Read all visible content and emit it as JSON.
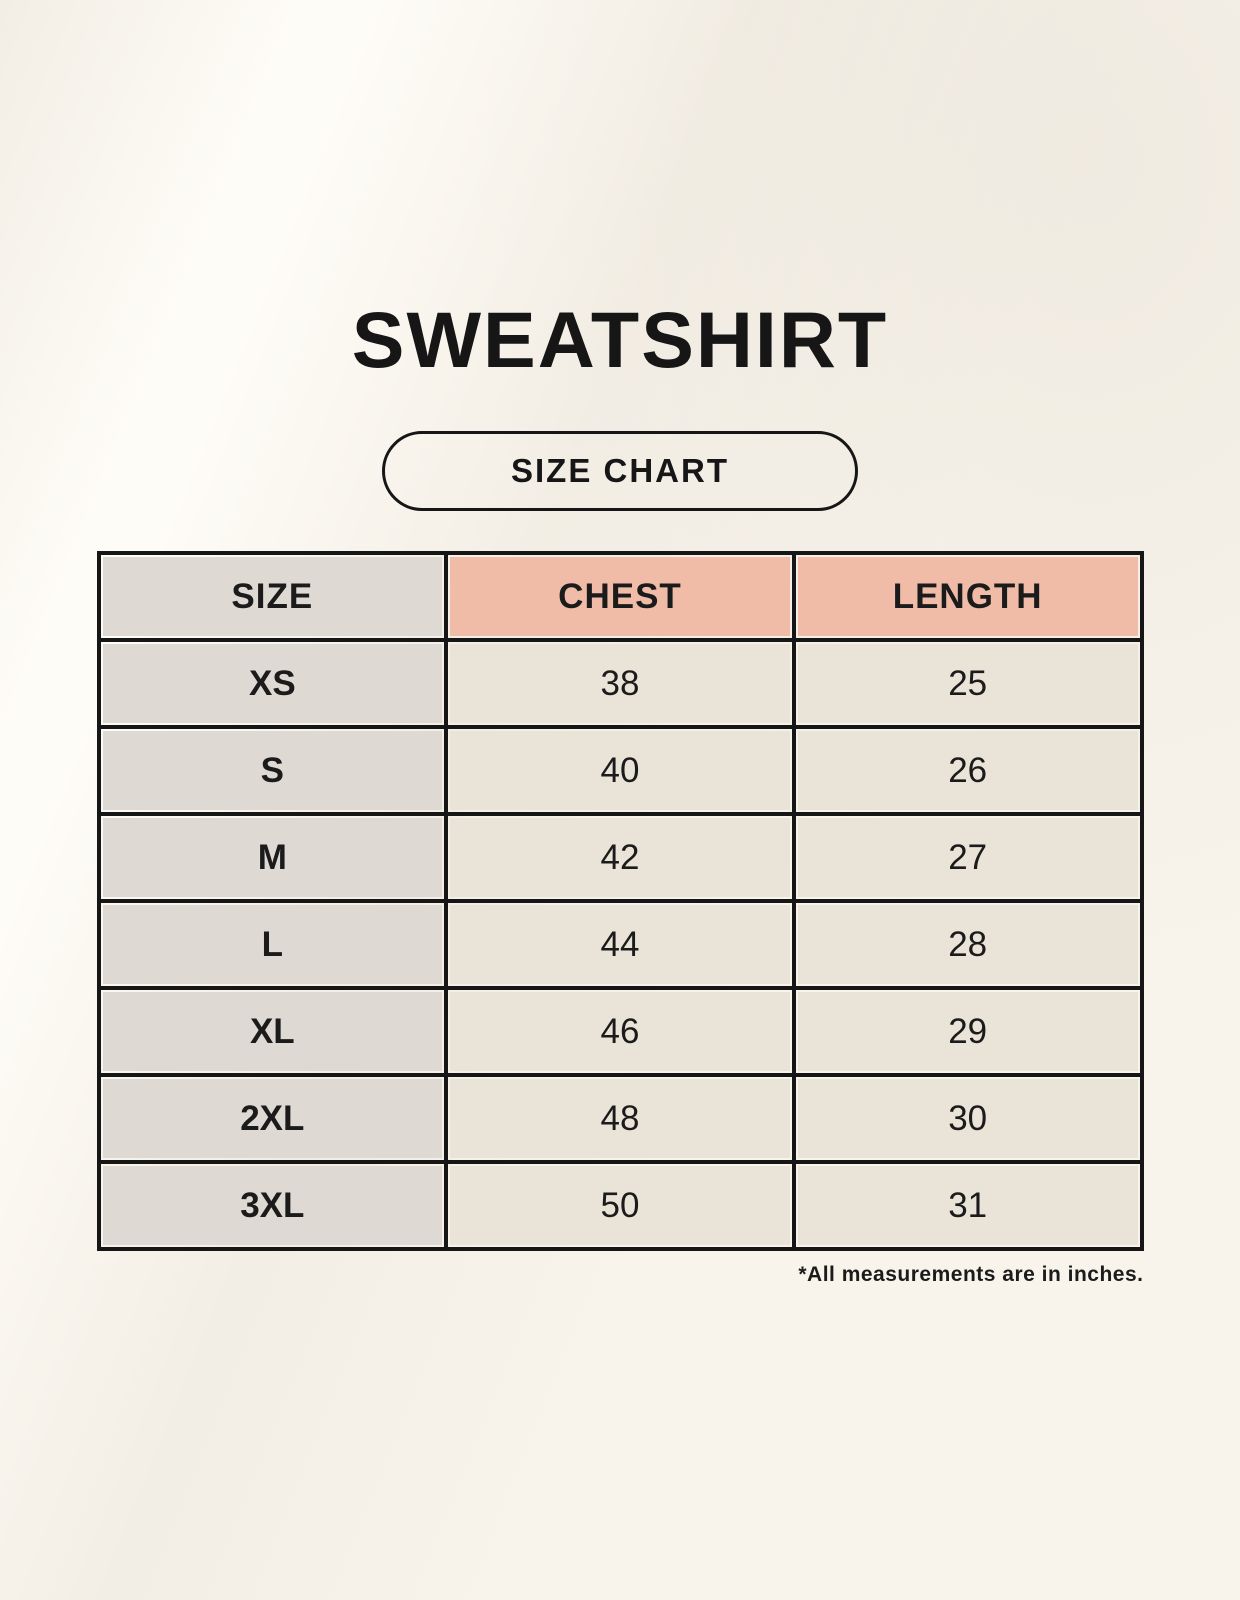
{
  "page": {
    "title": "SWEATSHIRT",
    "badge_label": "SIZE CHART",
    "footnote": "*All measurements are in inches."
  },
  "colors": {
    "background": "#F8F4EC",
    "header_accent": "#F0BCA8",
    "size_column": "#DFD9D3",
    "cell_fill": "#EAE3D8",
    "line": "#161616",
    "text": "#1B1B1B"
  },
  "chart_data": {
    "type": "table",
    "title": "SWEATSHIRT",
    "columns": [
      "SIZE",
      "CHEST",
      "LENGTH"
    ],
    "rows": [
      {
        "size": "XS",
        "chest": "38",
        "length": "25"
      },
      {
        "size": "S",
        "chest": "40",
        "length": "26"
      },
      {
        "size": "M",
        "chest": "42",
        "length": "27"
      },
      {
        "size": "L",
        "chest": "44",
        "length": "28"
      },
      {
        "size": "XL",
        "chest": "46",
        "length": "29"
      },
      {
        "size": "2XL",
        "chest": "48",
        "length": "30"
      },
      {
        "size": "3XL",
        "chest": "50",
        "length": "31"
      }
    ],
    "units": "inches",
    "footnote": "*All measurements are in inches.",
    "layout": {
      "grid": true,
      "header_fill": "accent-pink",
      "size_column_fill": "gray"
    }
  }
}
